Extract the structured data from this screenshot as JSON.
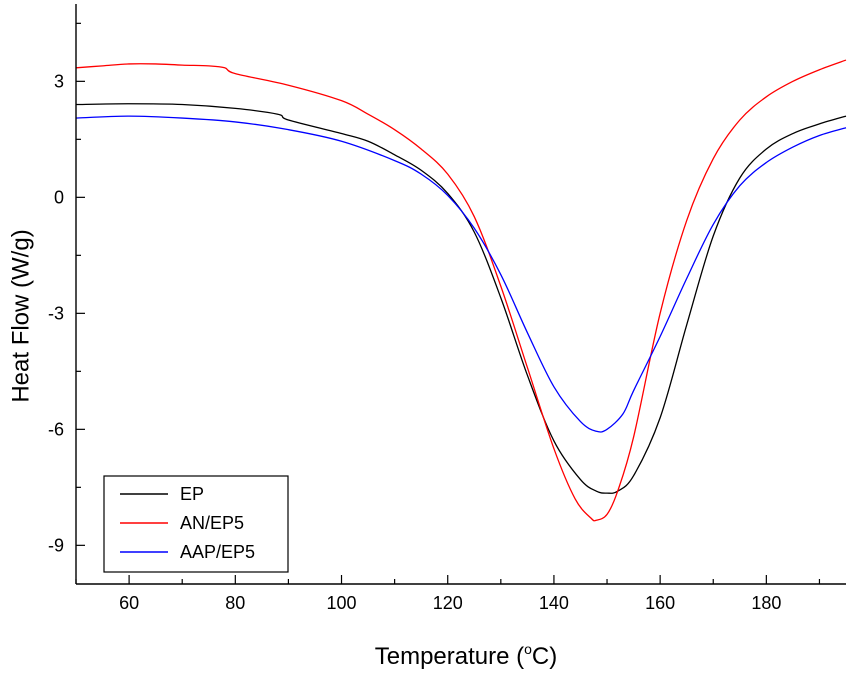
{
  "chart_data": {
    "type": "line",
    "xlabel": "Temperature (",
    "xlabel_sup": "o",
    "xlabel_unit": "C)",
    "ylabel": "Heat Flow (W/g)",
    "xlim": [
      50,
      195
    ],
    "ylim": [
      -10,
      5
    ],
    "x_ticks": [
      60,
      80,
      100,
      120,
      140,
      160,
      180
    ],
    "y_ticks": [
      3,
      0,
      -3,
      -6,
      -9
    ],
    "x_tick_labels": [
      "60",
      "80",
      "100",
      "120",
      "140",
      "160",
      "180"
    ],
    "y_tick_labels": [
      "3",
      "0",
      "-3",
      "-6",
      "-9"
    ],
    "legend_position": "bottom-left",
    "series": [
      {
        "name": "EP",
        "color": "#000000",
        "points": [
          [
            50,
            2.4
          ],
          [
            60,
            2.42
          ],
          [
            70,
            2.4
          ],
          [
            80,
            2.3
          ],
          [
            88,
            2.15
          ],
          [
            90,
            2.0
          ],
          [
            100,
            1.65
          ],
          [
            105,
            1.45
          ],
          [
            110,
            1.1
          ],
          [
            115,
            0.7
          ],
          [
            120,
            0.1
          ],
          [
            125,
            -0.9
          ],
          [
            130,
            -2.6
          ],
          [
            135,
            -4.6
          ],
          [
            140,
            -6.3
          ],
          [
            145,
            -7.3
          ],
          [
            148,
            -7.6
          ],
          [
            150,
            -7.65
          ],
          [
            152,
            -7.6
          ],
          [
            155,
            -7.2
          ],
          [
            160,
            -5.7
          ],
          [
            165,
            -3.3
          ],
          [
            170,
            -1.0
          ],
          [
            175,
            0.5
          ],
          [
            180,
            1.25
          ],
          [
            185,
            1.65
          ],
          [
            190,
            1.9
          ],
          [
            195,
            2.1
          ]
        ]
      },
      {
        "name": "AN/EP5",
        "color": "#ff0000",
        "points": [
          [
            50,
            3.35
          ],
          [
            55,
            3.4
          ],
          [
            60,
            3.45
          ],
          [
            65,
            3.45
          ],
          [
            70,
            3.42
          ],
          [
            75,
            3.4
          ],
          [
            78,
            3.35
          ],
          [
            80,
            3.2
          ],
          [
            90,
            2.9
          ],
          [
            100,
            2.5
          ],
          [
            105,
            2.15
          ],
          [
            110,
            1.75
          ],
          [
            115,
            1.25
          ],
          [
            120,
            0.6
          ],
          [
            125,
            -0.5
          ],
          [
            130,
            -2.3
          ],
          [
            135,
            -4.4
          ],
          [
            140,
            -6.5
          ],
          [
            144,
            -7.8
          ],
          [
            147,
            -8.3
          ],
          [
            148,
            -8.35
          ],
          [
            150,
            -8.2
          ],
          [
            152,
            -7.6
          ],
          [
            155,
            -6.2
          ],
          [
            160,
            -3.0
          ],
          [
            165,
            -0.6
          ],
          [
            170,
            1.0
          ],
          [
            175,
            2.0
          ],
          [
            180,
            2.6
          ],
          [
            185,
            3.0
          ],
          [
            190,
            3.3
          ],
          [
            195,
            3.55
          ]
        ]
      },
      {
        "name": "AAP/EP5",
        "color": "#0000ff",
        "points": [
          [
            50,
            2.05
          ],
          [
            60,
            2.1
          ],
          [
            70,
            2.05
          ],
          [
            80,
            1.95
          ],
          [
            90,
            1.75
          ],
          [
            100,
            1.45
          ],
          [
            110,
            0.95
          ],
          [
            115,
            0.6
          ],
          [
            120,
            0.05
          ],
          [
            125,
            -0.8
          ],
          [
            130,
            -2.0
          ],
          [
            135,
            -3.5
          ],
          [
            140,
            -4.9
          ],
          [
            145,
            -5.8
          ],
          [
            148,
            -6.05
          ],
          [
            150,
            -6.0
          ],
          [
            153,
            -5.6
          ],
          [
            155,
            -5.0
          ],
          [
            160,
            -3.6
          ],
          [
            165,
            -2.1
          ],
          [
            170,
            -0.7
          ],
          [
            175,
            0.3
          ],
          [
            180,
            0.9
          ],
          [
            185,
            1.3
          ],
          [
            190,
            1.6
          ],
          [
            195,
            1.8
          ]
        ]
      }
    ]
  }
}
